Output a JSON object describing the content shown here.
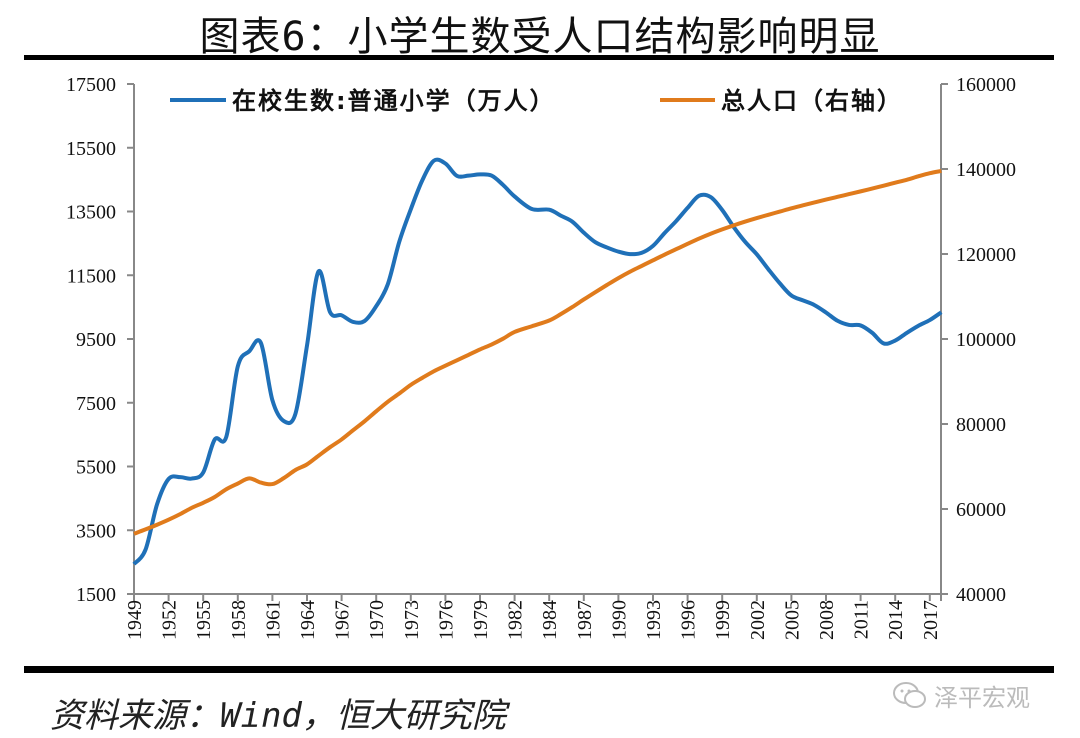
{
  "title": "图表6：小学生数受人口结构影响明显",
  "footer": "资料来源：Wind，恒大研究院",
  "watermark": "泽平宏观",
  "chart_data": {
    "type": "line",
    "title": "图表6：小学生数受人口结构影响明显",
    "x_tick_labels": [
      "1949",
      "1952",
      "1955",
      "1958",
      "1961",
      "1964",
      "1967",
      "1970",
      "1973",
      "1976",
      "1979",
      "1982",
      "1984",
      "1987",
      "1990",
      "1993",
      "1996",
      "1999",
      "2002",
      "2005",
      "2008",
      "2011",
      "2014",
      "2017"
    ],
    "y_left": {
      "ylim": [
        1500,
        17500
      ],
      "ticks": [
        1500,
        3500,
        5500,
        7500,
        9500,
        11500,
        13500,
        15500,
        17500
      ]
    },
    "y_right": {
      "ylim": [
        40000,
        160000
      ],
      "ticks": [
        40000,
        60000,
        80000,
        100000,
        120000,
        140000,
        160000
      ]
    },
    "grid": false,
    "legend": "top",
    "series": [
      {
        "name": "在校生数:普通小学（万人）",
        "axis": "left",
        "color": "#1f70b8",
        "x": [
          1949,
          1950,
          1951,
          1952,
          1953,
          1954,
          1955,
          1956,
          1957,
          1958,
          1959,
          1960,
          1961,
          1962,
          1963,
          1964,
          1965,
          1966,
          1967,
          1968,
          1969,
          1970,
          1971,
          1972,
          1973,
          1974,
          1975,
          1976,
          1977,
          1978,
          1979,
          1980,
          1981,
          1982,
          1983,
          1984,
          1985,
          1986,
          1987,
          1988,
          1989,
          1990,
          1991,
          1992,
          1993,
          1994,
          1995,
          1996,
          1997,
          1998,
          1999,
          2000,
          2001,
          2002,
          2003,
          2004,
          2005,
          2006,
          2007,
          2008,
          2009,
          2010,
          2011,
          2012,
          2013,
          2014,
          2015,
          2016,
          2017,
          2018
        ],
        "values": [
          2439,
          2892,
          4315,
          5110,
          5166,
          5121,
          5313,
          6347,
          6428,
          8640,
          9118,
          9379,
          7579,
          6924,
          7158,
          9295,
          11621,
          10342,
          10244,
          10036,
          10067,
          10528,
          11212,
          12549,
          13570,
          14481,
          15094,
          15006,
          14618,
          14624,
          14663,
          14627,
          14333,
          13972,
          13578,
          13557,
          13370,
          13183,
          12836,
          12536,
          12373,
          12241,
          12164,
          12201,
          12421,
          12823,
          13196,
          13615,
          13995,
          13954,
          13548,
          13013,
          12544,
          12157,
          11690,
          11246,
          10864,
          10712,
          10564,
          10332,
          10072,
          9941,
          9926,
          9696,
          9361,
          9451,
          9692,
          9913,
          10094,
          10339
        ]
      },
      {
        "name": "总人口（右轴）",
        "axis": "right",
        "color": "#e07b1c",
        "x": [
          1949,
          1950,
          1951,
          1952,
          1953,
          1954,
          1955,
          1956,
          1957,
          1958,
          1959,
          1960,
          1961,
          1962,
          1963,
          1964,
          1965,
          1966,
          1967,
          1968,
          1969,
          1970,
          1971,
          1972,
          1973,
          1974,
          1975,
          1976,
          1977,
          1978,
          1979,
          1980,
          1981,
          1982,
          1983,
          1984,
          1985,
          1986,
          1987,
          1988,
          1989,
          1990,
          1991,
          1992,
          1993,
          1994,
          1995,
          1996,
          1997,
          1998,
          1999,
          2000,
          2001,
          2002,
          2003,
          2004,
          2005,
          2006,
          2007,
          2008,
          2009,
          2010,
          2011,
          2012,
          2013,
          2014,
          2015,
          2016,
          2017,
          2018
        ],
        "values": [
          54167,
          55196,
          56300,
          57482,
          58796,
          60266,
          61465,
          62828,
          64653,
          65994,
          67207,
          66207,
          65859,
          67295,
          69172,
          70499,
          72538,
          74542,
          76368,
          78534,
          80671,
          82992,
          85229,
          87177,
          89211,
          90859,
          92420,
          93717,
          94974,
          96259,
          97542,
          98705,
          100072,
          101654,
          103008,
          104357,
          105851,
          107507,
          109300,
          111026,
          112704,
          114333,
          115823,
          117171,
          118517,
          119850,
          121121,
          122389,
          123626,
          124761,
          125786,
          126743,
          127627,
          128453,
          129227,
          129988,
          130756,
          131448,
          132129,
          132802,
          133450,
          134091,
          134735,
          135404,
          136072,
          136782,
          137462,
          138271,
          139008,
          139538
        ]
      }
    ]
  }
}
